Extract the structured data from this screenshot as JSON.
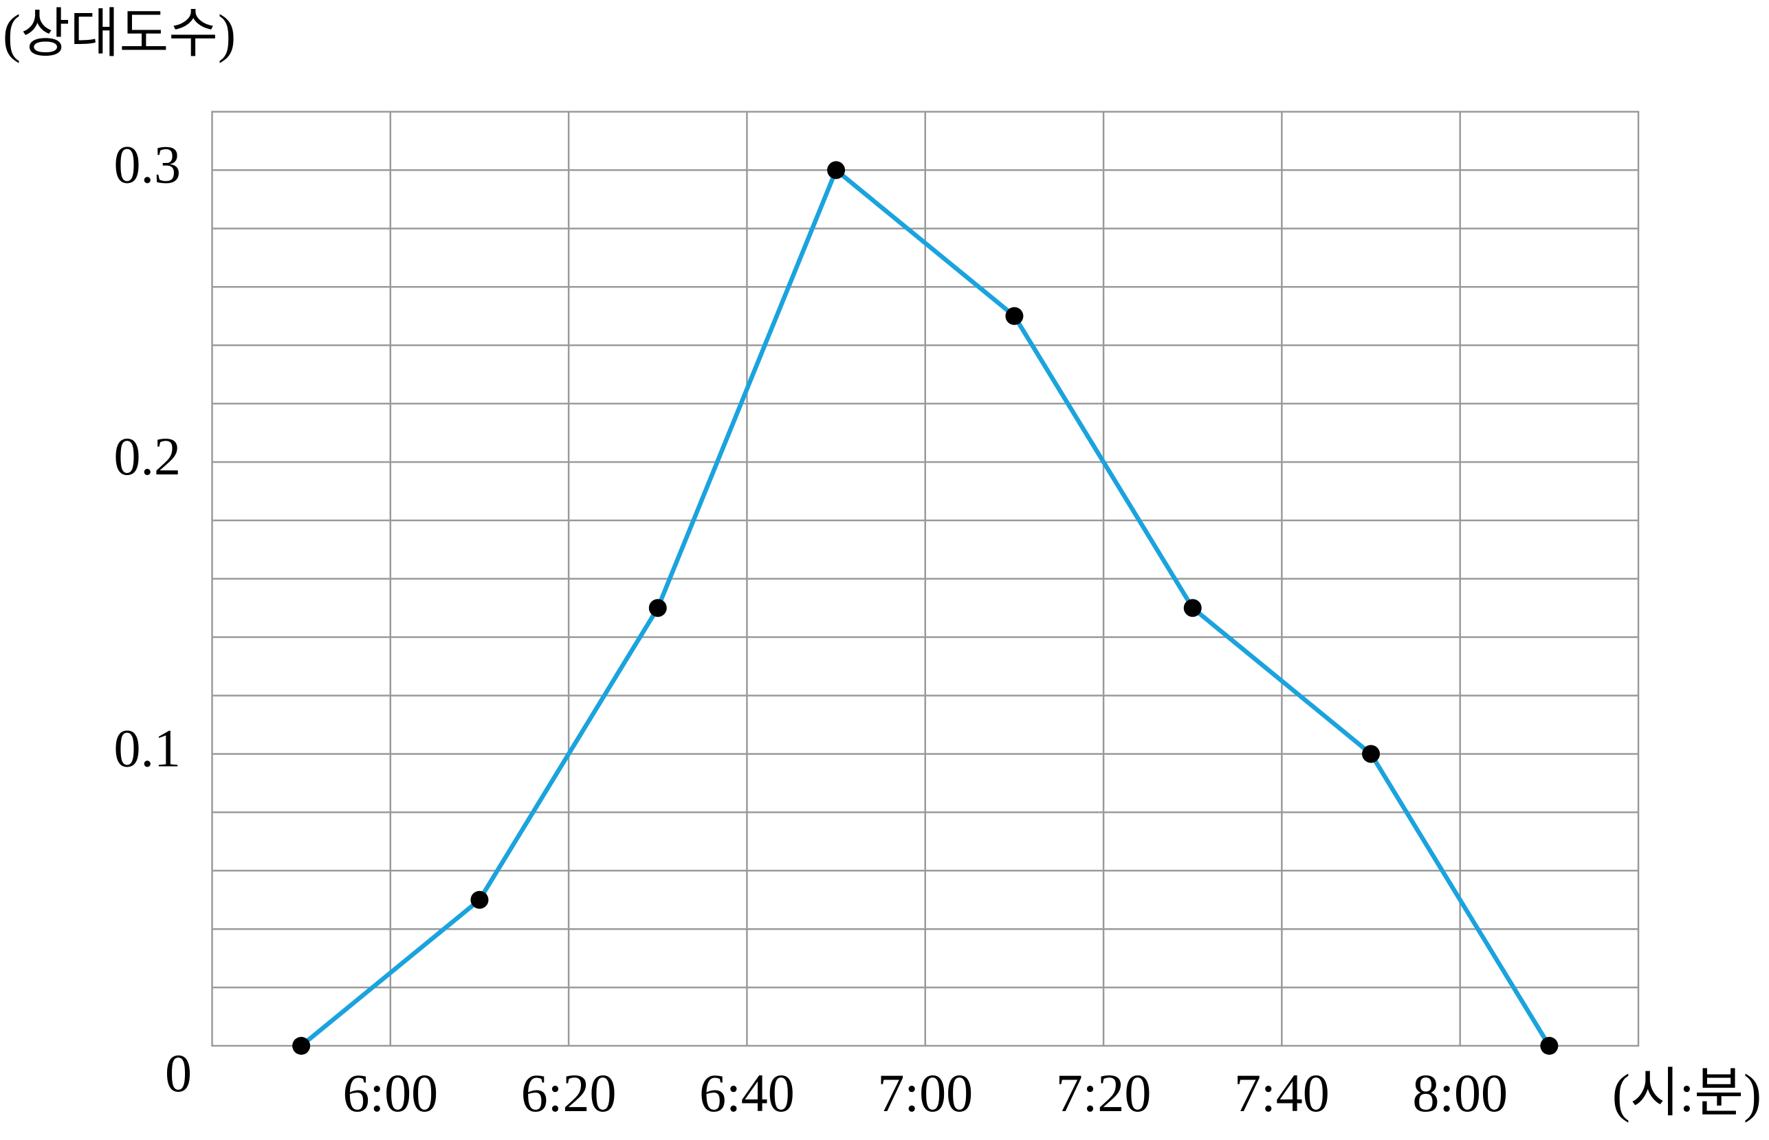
{
  "chart_data": {
    "type": "line",
    "y_label": "(상대도수)",
    "x_label": "(시:분)",
    "x": [
      350,
      370,
      390,
      410,
      430,
      450,
      470,
      490
    ],
    "series": [
      {
        "color": "#1aa3de",
        "marker_color": "#000000",
        "values": [
          0,
          0.05,
          0.15,
          0.3,
          0.25,
          0.15,
          0.1,
          0
        ]
      }
    ],
    "xlim": [
      340,
      500
    ],
    "xticks": [
      {
        "value": 360,
        "label": "6:00"
      },
      {
        "value": 380,
        "label": "6:20"
      },
      {
        "value": 400,
        "label": "6:40"
      },
      {
        "value": 420,
        "label": "7:00"
      },
      {
        "value": 440,
        "label": "7:20"
      },
      {
        "value": 460,
        "label": "7:40"
      },
      {
        "value": 480,
        "label": "8:00"
      }
    ],
    "ylim": [
      0,
      0.32
    ],
    "yticks": [
      0,
      0.1,
      0.2,
      0.3
    ],
    "ygrid": [
      0.02,
      0.04,
      0.06,
      0.08,
      0.1,
      0.12,
      0.14,
      0.16,
      0.18,
      0.2,
      0.22,
      0.24,
      0.26,
      0.28,
      0.3
    ],
    "grid": true
  }
}
